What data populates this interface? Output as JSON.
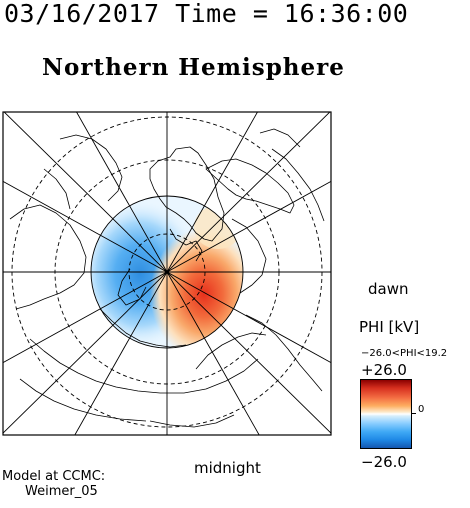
{
  "header": {
    "timestamp": "03/16/2017 Time = 16:36:00",
    "hemisphere_title": "Northern Hemisphere"
  },
  "map": {
    "projection": "polar stereographic, north pole centered",
    "orientation_labels": {
      "right": "dawn",
      "bottom": "midnight"
    },
    "potential_pattern": {
      "dusk_cell_sign": "negative",
      "dawn_cell_sign": "positive"
    }
  },
  "colorbar": {
    "title": "PHI [kV]",
    "range_text": "−26.0<PHI<19.2",
    "max_label": "+26.0",
    "min_label": "−26.0",
    "zero_label": "0",
    "colors": {
      "max": "#8b0000",
      "mid": "#ffffff",
      "min": "#1457b0"
    }
  },
  "credits": {
    "line1": "Model at CCMC:",
    "line2": "Weimer_05"
  }
}
